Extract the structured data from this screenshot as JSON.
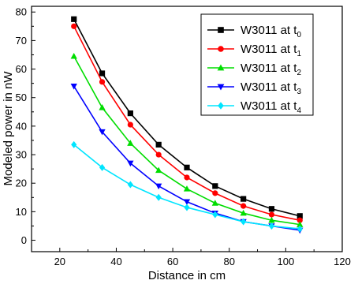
{
  "chart_data": {
    "type": "line",
    "title": "",
    "xlabel": "Distance in cm",
    "ylabel": "Modeled power in nW",
    "xlim": [
      10,
      120
    ],
    "ylim": [
      -4,
      82
    ],
    "x_ticks": [
      20,
      40,
      60,
      80,
      100,
      120
    ],
    "y_ticks": [
      0,
      10,
      20,
      30,
      40,
      50,
      60,
      70,
      80
    ],
    "grid": false,
    "legend_placement": "top-right",
    "x": [
      25,
      35,
      45,
      55,
      65,
      75,
      85,
      95,
      105
    ],
    "series": [
      {
        "name": "W3011 at t",
        "subscript": "0",
        "color": "#000000",
        "marker": "square",
        "values": [
          77.5,
          58.5,
          44.5,
          33.5,
          25.5,
          19.0,
          14.5,
          11.0,
          8.5
        ]
      },
      {
        "name": "W3011 at t",
        "subscript": "1",
        "color": "#ff0000",
        "marker": "circle",
        "values": [
          75.0,
          55.5,
          40.5,
          30.0,
          22.0,
          16.5,
          12.0,
          9.0,
          7.0
        ]
      },
      {
        "name": "W3011 at t",
        "subscript": "2",
        "color": "#00dd00",
        "marker": "triangle-up",
        "values": [
          64.5,
          46.5,
          34.0,
          24.5,
          18.0,
          13.0,
          9.5,
          7.0,
          5.5
        ]
      },
      {
        "name": "W3011 at t",
        "subscript": "3",
        "color": "#0000ff",
        "marker": "triangle-down",
        "values": [
          54.0,
          38.0,
          27.0,
          19.0,
          13.5,
          9.5,
          6.5,
          5.0,
          3.5
        ]
      },
      {
        "name": "W3011 at t",
        "subscript": "4",
        "color": "#00e5ff",
        "marker": "diamond",
        "values": [
          33.5,
          25.5,
          19.5,
          15.0,
          11.5,
          9.0,
          6.5,
          5.0,
          4.0
        ]
      }
    ]
  }
}
